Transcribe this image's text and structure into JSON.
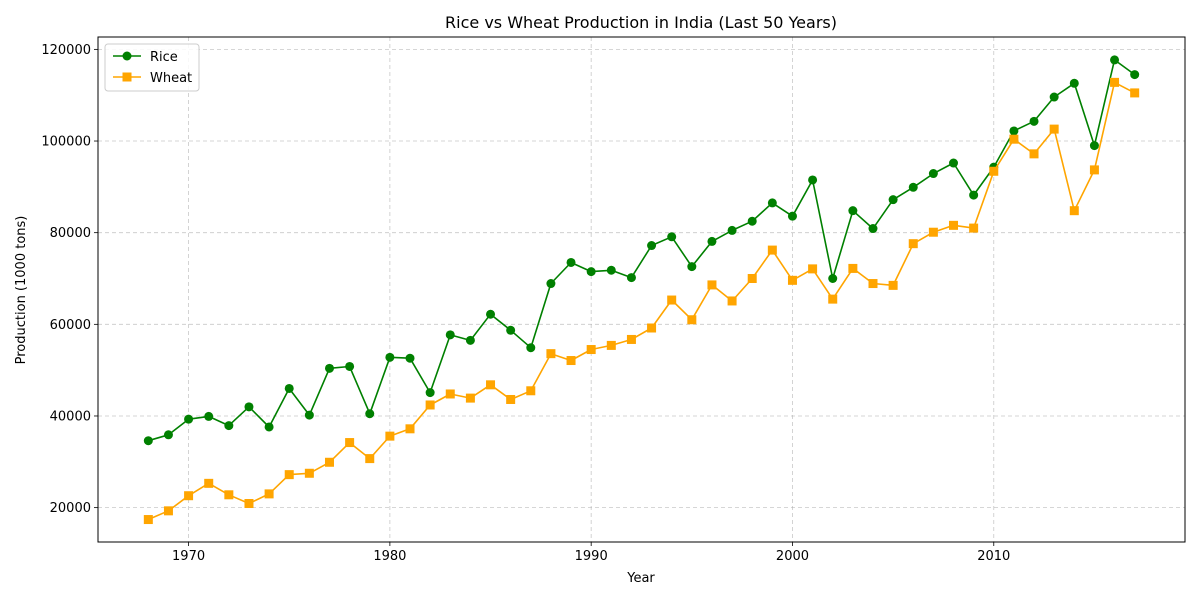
{
  "chart_data": {
    "type": "line",
    "title": "Rice vs Wheat Production in India (Last 50 Years)",
    "xlabel": "Year",
    "ylabel": "Production (1000 tons)",
    "xlim": [
      1965.5,
      2019.5
    ],
    "ylim": [
      12500,
      122700
    ],
    "xticks": [
      1970,
      1980,
      1990,
      2000,
      2010
    ],
    "yticks": [
      20000,
      40000,
      60000,
      80000,
      100000,
      120000
    ],
    "grid": true,
    "legend_position": "top-left",
    "x": [
      1968,
      1969,
      1970,
      1971,
      1972,
      1973,
      1974,
      1975,
      1976,
      1977,
      1978,
      1979,
      1980,
      1981,
      1982,
      1983,
      1984,
      1985,
      1986,
      1987,
      1988,
      1989,
      1990,
      1991,
      1992,
      1993,
      1994,
      1995,
      1996,
      1997,
      1998,
      1999,
      2000,
      2001,
      2002,
      2003,
      2004,
      2005,
      2006,
      2007,
      2008,
      2009,
      2010,
      2011,
      2012,
      2013,
      2014,
      2015,
      2016,
      2017
    ],
    "series": [
      {
        "name": "Rice",
        "color": "#008000",
        "marker": "circle",
        "values": [
          34600,
          35900,
          39300,
          39900,
          37900,
          42000,
          37600,
          46000,
          40200,
          50400,
          50800,
          40500,
          52800,
          52600,
          45100,
          57700,
          56500,
          62200,
          58700,
          54900,
          68900,
          73500,
          71500,
          71800,
          70200,
          77200,
          79100,
          72600,
          78100,
          80500,
          82500,
          86500,
          83600,
          91500,
          70000,
          84800,
          80900,
          87200,
          89900,
          92900,
          95200,
          88200,
          94300,
          102200,
          104300,
          109600,
          112600,
          99000,
          117700,
          114500
        ]
      },
      {
        "name": "Wheat",
        "color": "#ffa500",
        "marker": "square",
        "values": [
          17400,
          19300,
          22600,
          25300,
          22800,
          20900,
          23000,
          27200,
          27500,
          29900,
          34200,
          30700,
          35600,
          37200,
          42400,
          44800,
          43900,
          46800,
          43600,
          45500,
          53600,
          52100,
          54500,
          55400,
          56700,
          59200,
          65300,
          61000,
          68600,
          65100,
          70000,
          76200,
          69600,
          72100,
          65500,
          72200,
          68900,
          68500,
          77600,
          80100,
          81600,
          81000,
          93400,
          100400,
          97200,
          102600,
          84800,
          93700,
          112800,
          110500
        ]
      }
    ]
  }
}
